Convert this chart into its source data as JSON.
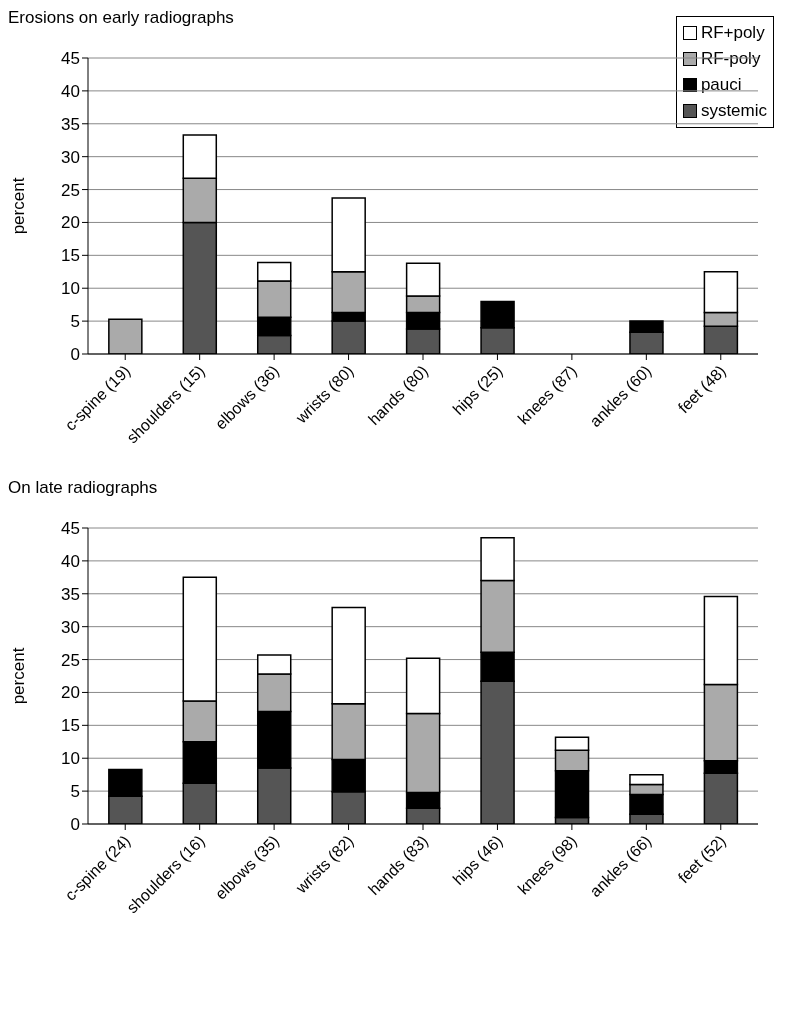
{
  "chart_data": [
    {
      "type": "bar",
      "title": "Erosions on early radiographs",
      "ylabel": "percent",
      "categories": [
        "c-spine (19)",
        "shoulders (15)",
        "elbows (36)",
        "wrists (80)",
        "hands (80)",
        "hips (25)",
        "knees (87)",
        "ankles (60)",
        "feet (48)"
      ],
      "stacked": true,
      "series": [
        {
          "name": "systemic",
          "color": "#555555",
          "values": [
            0,
            20,
            2.8,
            5,
            3.8,
            4,
            0,
            3.3,
            4.2
          ]
        },
        {
          "name": "pauci",
          "color": "#000000",
          "values": [
            0,
            0,
            2.8,
            1.3,
            2.5,
            4,
            0,
            1.7,
            0
          ]
        },
        {
          "name": "RF-poly",
          "color": "#aaaaaa",
          "values": [
            5.3,
            6.7,
            5.5,
            6.2,
            2.5,
            0,
            0,
            0,
            2.1
          ]
        },
        {
          "name": "RF+poly",
          "color": "#ffffff",
          "values": [
            0,
            6.6,
            2.8,
            11.2,
            5,
            0,
            0,
            0,
            6.2
          ]
        }
      ],
      "ylim": [
        0,
        45
      ],
      "yticks": [
        0,
        5,
        10,
        15,
        20,
        25,
        30,
        35,
        40,
        45
      ],
      "grid": "y",
      "legend": "top right"
    },
    {
      "type": "bar",
      "title": "On late radiographs",
      "ylabel": "percent",
      "categories": [
        "c-spine (24)",
        "shoulders (16)",
        "elbows (35)",
        "wrists (82)",
        "hands (83)",
        "hips (46)",
        "knees (98)",
        "ankles (66)",
        "feet  (52)"
      ],
      "stacked": true,
      "series": [
        {
          "color": "#555555",
          "values": [
            4.2,
            6.2,
            8.5,
            4.9,
            2.4,
            21.7,
            1,
            1.5,
            7.7
          ]
        },
        {
          "color": "#000000",
          "values": [
            4.1,
            6.3,
            8.6,
            4.9,
            2.4,
            4.4,
            7.1,
            3,
            1.9
          ]
        },
        {
          "color": "#aaaaaa",
          "values": [
            0,
            6.2,
            5.7,
            8.5,
            12,
            10.9,
            3.1,
            1.5,
            11.6
          ]
        },
        {
          "color": "#ffffff",
          "values": [
            0,
            18.8,
            2.9,
            14.6,
            8.4,
            6.5,
            2,
            1.5,
            13.4
          ]
        }
      ],
      "ylim": [
        0,
        45
      ],
      "yticks": [
        0,
        5,
        10,
        15,
        20,
        25,
        30,
        35,
        40,
        45
      ],
      "grid": "y"
    }
  ]
}
